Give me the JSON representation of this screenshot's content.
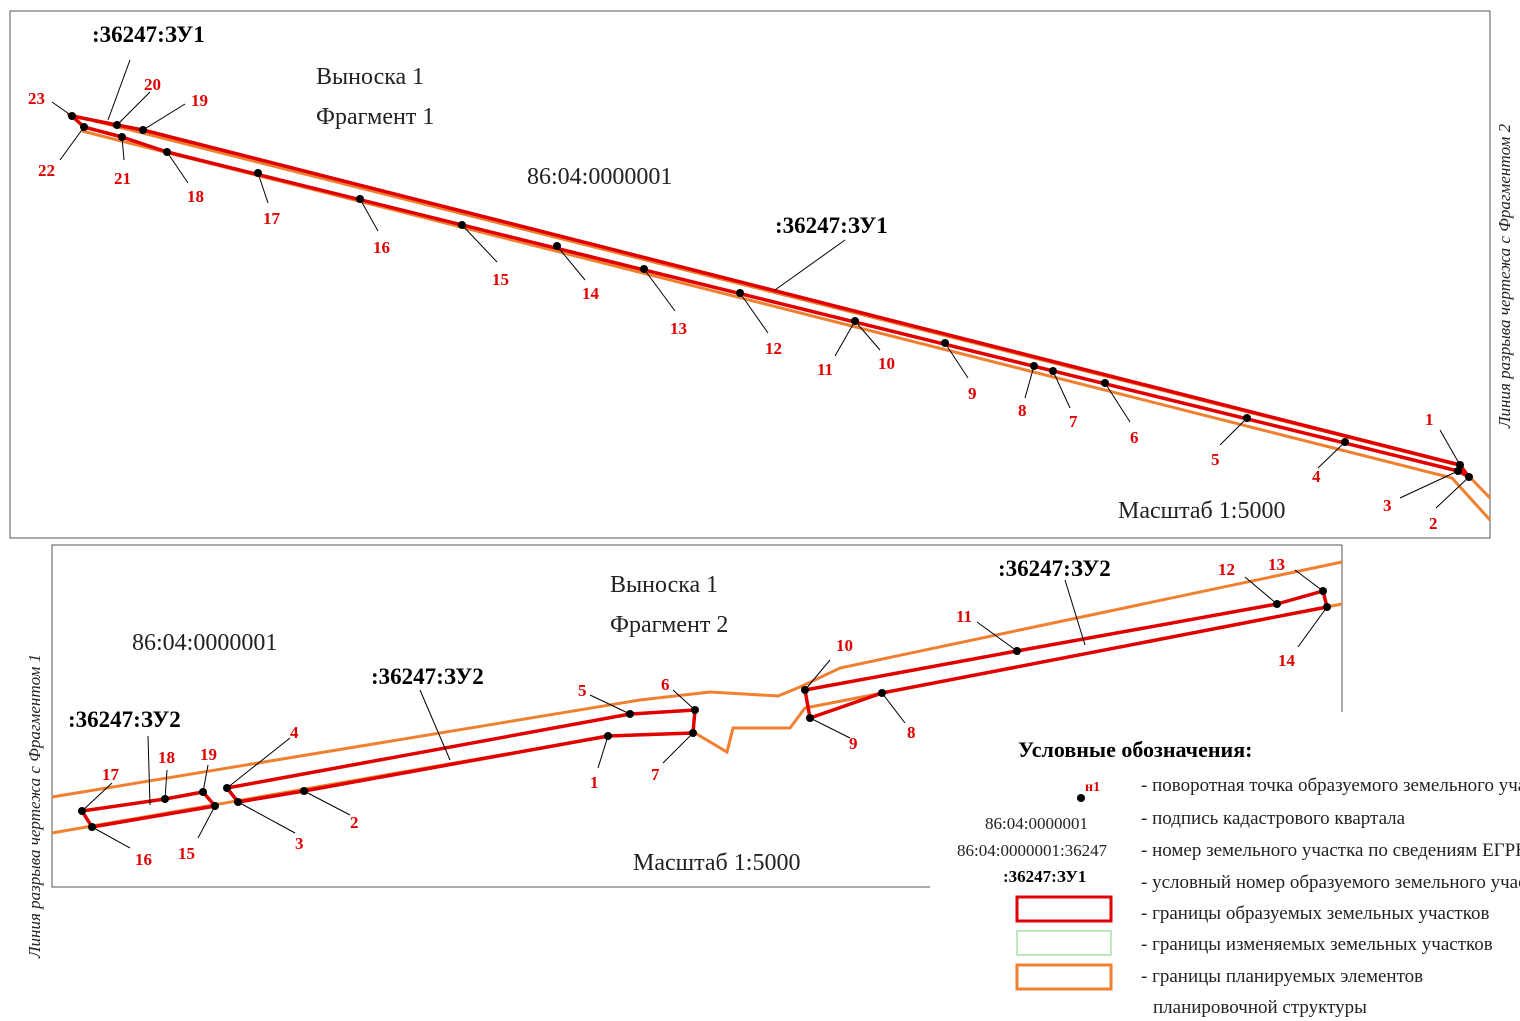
{
  "fragment1": {
    "callout": "Выноска 1",
    "fragment": "Фрагмент 1",
    "quarter": "86:04:0000001",
    "parcel_top": ":36247:ЗУ1",
    "parcel_mid": ":36247:ЗУ1",
    "scale": "Масштаб 1:5000",
    "break_label": "Линия разрыва чертежа с Фрагментом 2",
    "points": [
      "1",
      "2",
      "3",
      "4",
      "5",
      "6",
      "7",
      "8",
      "9",
      "10",
      "11",
      "12",
      "13",
      "14",
      "15",
      "16",
      "17",
      "18",
      "19",
      "20",
      "21",
      "22",
      "23"
    ]
  },
  "fragment2": {
    "callout": "Выноска 1",
    "fragment": "Фрагмент 2",
    "quarter": "86:04:0000001",
    "parcel_a": ":36247:ЗУ2",
    "parcel_b": ":36247:ЗУ2",
    "parcel_c": ":36247:ЗУ2",
    "scale": "Масштаб 1:5000",
    "break_label": "Линия разрыва чертежа с Фрагментом 1",
    "points": [
      "1",
      "2",
      "3",
      "4",
      "5",
      "6",
      "7",
      "8",
      "9",
      "10",
      "11",
      "12",
      "13",
      "14",
      "15",
      "16",
      "17",
      "18",
      "19"
    ]
  },
  "legend": {
    "title": "Условные обозначения:",
    "items": [
      {
        "sample": "н1",
        "text": "- поворотная точка образуемого земельного участка"
      },
      {
        "sample": "86:04:0000001",
        "text": "- подпись кадастрового квартала"
      },
      {
        "sample": "86:04:0000001:36247",
        "text": "- номер земельного участка по сведениям ЕГРН"
      },
      {
        "sample": ":36247:ЗУ1",
        "text": "- условный номер образуемого земельного участка"
      },
      {
        "sample": "",
        "text": "- границы образуемых земельных участков"
      },
      {
        "sample": "",
        "text": "- границы изменяемых земельных участков"
      },
      {
        "sample": "",
        "text": "- границы планируемых элементов"
      },
      {
        "sample": "",
        "text": "планировочной структуры"
      }
    ]
  },
  "colors": {
    "parcel_border": "#e00000",
    "changed_border": "#7fd27f",
    "planning_border": "#f08030",
    "point_label": "#e00000"
  }
}
